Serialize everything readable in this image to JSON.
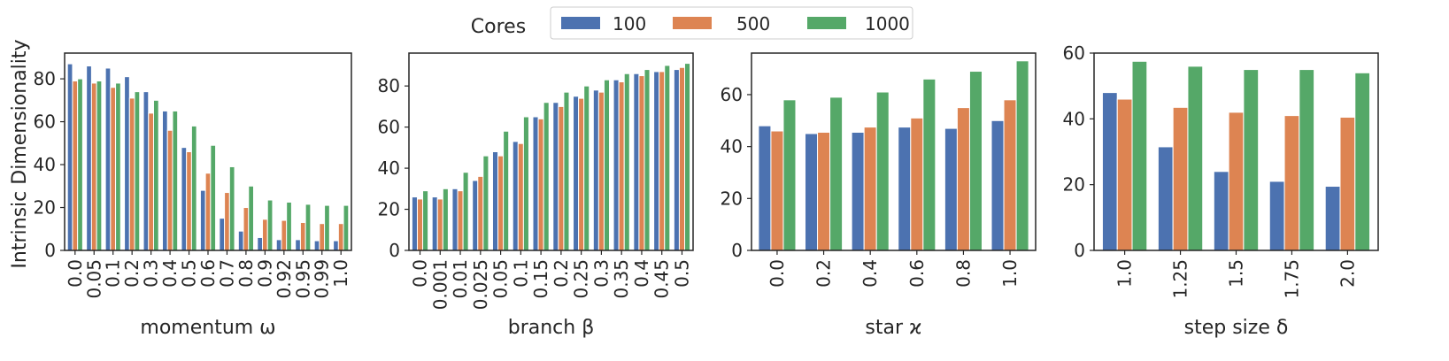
{
  "legend": {
    "title": "Cores",
    "placement": "top-center",
    "entries": [
      {
        "label": "100",
        "color": "#4C72B0"
      },
      {
        "label": "500",
        "color": "#DD8452"
      },
      {
        "label": "1000",
        "color": "#55A868"
      }
    ]
  },
  "ylabel": "Intrinsic Dimensionality",
  "chart_data": [
    {
      "type": "bar",
      "xlabel": "momentum ω",
      "ylabel": "Intrinsic Dimensionality",
      "categories": [
        "0.0",
        "0.05",
        "0.1",
        "0.2",
        "0.3",
        "0.4",
        "0.5",
        "0.6",
        "0.7",
        "0.8",
        "0.9",
        "0.92",
        "0.95",
        "0.99",
        "1.0"
      ],
      "series": [
        {
          "name": "100",
          "values": [
            87,
            86,
            85,
            81,
            74,
            65,
            48,
            28,
            15,
            9,
            6,
            5,
            5,
            4.5,
            4.5
          ]
        },
        {
          "name": "500",
          "values": [
            79,
            78,
            76,
            71,
            64,
            56,
            46,
            36,
            27,
            20,
            14.5,
            14,
            13,
            12.5,
            12.5
          ]
        },
        {
          "name": "1000",
          "values": [
            80,
            79,
            78,
            74,
            70,
            65,
            58,
            49,
            39,
            30,
            23.5,
            22.5,
            21.5,
            21,
            21
          ]
        }
      ],
      "ylim": [
        0,
        92
      ],
      "yticks": [
        0,
        20,
        40,
        60,
        80
      ],
      "grid": false
    },
    {
      "type": "bar",
      "xlabel": "branch β",
      "ylabel": "",
      "categories": [
        "0.0",
        "0.001",
        "0.01",
        "0.025",
        "0.05",
        "0.1",
        "0.15",
        "0.2",
        "0.25",
        "0.3",
        "0.35",
        "0.4",
        "0.45",
        "0.5"
      ],
      "series": [
        {
          "name": "100",
          "values": [
            26,
            26,
            30,
            34,
            48,
            53,
            65,
            72,
            75,
            78,
            83,
            86,
            87,
            88
          ]
        },
        {
          "name": "500",
          "values": [
            25,
            25,
            29,
            36,
            46,
            52,
            64,
            70,
            74,
            77,
            82,
            85,
            87,
            89
          ]
        },
        {
          "name": "1000",
          "values": [
            29,
            30,
            38,
            46,
            58,
            65,
            72,
            77,
            80,
            83,
            86,
            88,
            90,
            91
          ]
        }
      ],
      "ylim": [
        0,
        96
      ],
      "yticks": [
        0,
        20,
        40,
        60,
        80
      ],
      "grid": false
    },
    {
      "type": "bar",
      "xlabel": "star ϰ",
      "ylabel": "",
      "categories": [
        "0.0",
        "0.2",
        "0.4",
        "0.6",
        "0.8",
        "1.0"
      ],
      "series": [
        {
          "name": "100",
          "values": [
            48,
            45,
            45.5,
            47.5,
            47,
            50
          ]
        },
        {
          "name": "500",
          "values": [
            46,
            45.5,
            47.5,
            51,
            55,
            58
          ]
        },
        {
          "name": "1000",
          "values": [
            58,
            59,
            61,
            66,
            69,
            73
          ]
        }
      ],
      "ylim": [
        0,
        76
      ],
      "yticks": [
        0,
        20,
        40,
        60
      ],
      "grid": false
    },
    {
      "type": "bar",
      "xlabel": "step size δ",
      "ylabel": "",
      "categories": [
        "1.0",
        "1.25",
        "1.5",
        "1.75",
        "2.0"
      ],
      "series": [
        {
          "name": "100",
          "values": [
            48,
            31.5,
            24,
            21,
            19.5
          ]
        },
        {
          "name": "500",
          "values": [
            46,
            43.5,
            42,
            41,
            40.5
          ]
        },
        {
          "name": "1000",
          "values": [
            57.5,
            56,
            55,
            55,
            54
          ]
        }
      ],
      "ylim": [
        0,
        60
      ],
      "yticks": [
        0,
        20,
        40,
        60
      ],
      "grid": false
    }
  ]
}
